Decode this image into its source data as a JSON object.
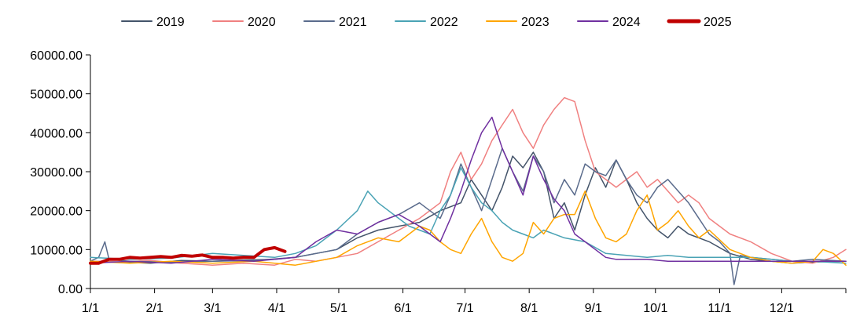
{
  "chart_data": {
    "type": "line",
    "title": "",
    "xlabel": "",
    "ylabel": "",
    "ylim": [
      0,
      60000
    ],
    "y_ticks": [
      "0.00",
      "10000.00",
      "20000.00",
      "30000.00",
      "40000.00",
      "50000.00",
      "60000.00"
    ],
    "y_tick_values": [
      0,
      10000,
      20000,
      30000,
      40000,
      50000,
      60000
    ],
    "x_ticks": [
      "1/1",
      "2/1",
      "3/1",
      "4/1",
      "5/1",
      "6/1",
      "7/1",
      "8/1",
      "9/1",
      "10/1",
      "11/1",
      "12/1"
    ],
    "x_tick_days": [
      1,
      32,
      60,
      91,
      121,
      152,
      182,
      213,
      244,
      274,
      305,
      335
    ],
    "x_range_days": [
      1,
      366
    ],
    "grid": false,
    "legend_position": "top",
    "series": [
      {
        "name": "2019",
        "color": "#44546a",
        "width": 1.5,
        "x": [
          1,
          15,
          30,
          45,
          60,
          75,
          90,
          100,
          110,
          120,
          130,
          140,
          150,
          160,
          170,
          180,
          185,
          190,
          195,
          200,
          205,
          210,
          215,
          220,
          225,
          230,
          235,
          240,
          245,
          250,
          255,
          260,
          265,
          270,
          275,
          280,
          285,
          290,
          300,
          310,
          320,
          330,
          340,
          350,
          366
        ],
        "y": [
          7000,
          6800,
          6500,
          7200,
          7000,
          7300,
          7500,
          8000,
          9000,
          10000,
          13000,
          15000,
          16000,
          17000,
          20000,
          22000,
          28000,
          24000,
          20000,
          26000,
          34000,
          31000,
          35000,
          30000,
          18000,
          22000,
          15000,
          24000,
          31000,
          26000,
          33000,
          28000,
          22000,
          18000,
          15000,
          13000,
          16000,
          14000,
          12000,
          9000,
          7500,
          7000,
          6500,
          6800,
          7000
        ]
      },
      {
        "name": "2020",
        "color": "#f08080",
        "width": 1.5,
        "x": [
          1,
          15,
          30,
          45,
          60,
          75,
          90,
          100,
          110,
          120,
          130,
          140,
          150,
          160,
          170,
          175,
          180,
          185,
          190,
          195,
          200,
          205,
          210,
          215,
          220,
          225,
          230,
          235,
          240,
          245,
          250,
          255,
          260,
          265,
          270,
          275,
          280,
          285,
          290,
          295,
          300,
          310,
          320,
          330,
          340,
          350,
          360,
          366
        ],
        "y": [
          7000,
          6800,
          7200,
          6500,
          6000,
          6500,
          6000,
          7500,
          7000,
          8000,
          9000,
          12000,
          15000,
          18000,
          22000,
          30000,
          35000,
          28000,
          32000,
          38000,
          42000,
          46000,
          40000,
          36000,
          42000,
          46000,
          49000,
          48000,
          38000,
          30000,
          28000,
          26000,
          28000,
          30000,
          26000,
          28000,
          25000,
          22000,
          24000,
          22000,
          18000,
          14000,
          12000,
          9000,
          7000,
          6500,
          8000,
          10000
        ]
      },
      {
        "name": "2021",
        "color": "#5a6b8c",
        "width": 1.5,
        "x": [
          1,
          5,
          8,
          10,
          20,
          40,
          60,
          80,
          100,
          110,
          120,
          130,
          140,
          150,
          160,
          165,
          170,
          175,
          180,
          185,
          190,
          195,
          200,
          205,
          210,
          215,
          220,
          225,
          230,
          235,
          240,
          245,
          250,
          255,
          260,
          265,
          270,
          275,
          280,
          290,
          300,
          305,
          310,
          312,
          315,
          320,
          330,
          340,
          350,
          366
        ],
        "y": [
          7000,
          8000,
          12000,
          7500,
          7000,
          6800,
          7000,
          7200,
          8000,
          9000,
          10000,
          14000,
          17000,
          19000,
          22000,
          20000,
          18000,
          24000,
          32000,
          26000,
          20000,
          28000,
          36000,
          30000,
          25000,
          34000,
          30000,
          22000,
          28000,
          24000,
          32000,
          30000,
          29000,
          33000,
          28000,
          24000,
          22000,
          26000,
          28000,
          22000,
          14000,
          12000,
          9000,
          1000,
          8500,
          8000,
          7500,
          7000,
          7500,
          7000
        ]
      },
      {
        "name": "2022",
        "color": "#4aa3b5",
        "width": 1.5,
        "x": [
          1,
          20,
          40,
          60,
          75,
          90,
          100,
          110,
          115,
          120,
          130,
          135,
          140,
          150,
          155,
          160,
          165,
          170,
          175,
          180,
          185,
          190,
          195,
          200,
          205,
          210,
          215,
          220,
          230,
          240,
          250,
          260,
          270,
          280,
          290,
          300,
          310,
          320,
          330,
          340,
          350,
          366
        ],
        "y": [
          8000,
          7500,
          7800,
          9000,
          8500,
          8000,
          9000,
          11000,
          13000,
          15000,
          20000,
          25000,
          22000,
          18000,
          16000,
          15000,
          14000,
          20000,
          24000,
          31000,
          26000,
          22000,
          20000,
          17000,
          15000,
          14000,
          13000,
          15000,
          13000,
          12000,
          9000,
          8500,
          8000,
          8500,
          8000,
          8000,
          8000,
          8000,
          7500,
          7000,
          7000,
          6500
        ]
      },
      {
        "name": "2023",
        "color": "#ffa500",
        "width": 1.5,
        "x": [
          1,
          20,
          40,
          60,
          80,
          100,
          120,
          130,
          140,
          150,
          155,
          160,
          165,
          170,
          175,
          180,
          185,
          190,
          195,
          200,
          205,
          210,
          215,
          220,
          225,
          230,
          235,
          240,
          245,
          250,
          255,
          260,
          265,
          270,
          275,
          280,
          285,
          290,
          295,
          300,
          310,
          320,
          330,
          340,
          350,
          355,
          360,
          366
        ],
        "y": [
          7000,
          6500,
          7000,
          6500,
          7000,
          6000,
          8000,
          11000,
          13000,
          12000,
          14000,
          16000,
          15000,
          12000,
          10000,
          9000,
          14000,
          18000,
          12000,
          8000,
          7000,
          9000,
          17000,
          14000,
          18000,
          19000,
          19000,
          25000,
          18000,
          13000,
          12000,
          14000,
          20000,
          24000,
          15000,
          17000,
          20000,
          16000,
          13000,
          15000,
          10000,
          8000,
          7000,
          6500,
          7000,
          10000,
          9000,
          6000
        ]
      },
      {
        "name": "2024",
        "color": "#7030a0",
        "width": 1.5,
        "x": [
          1,
          20,
          40,
          60,
          80,
          100,
          110,
          120,
          130,
          140,
          150,
          160,
          165,
          170,
          175,
          180,
          185,
          190,
          195,
          200,
          205,
          210,
          215,
          220,
          225,
          230,
          235,
          240,
          245,
          250,
          255,
          260,
          270,
          280,
          290,
          300,
          310,
          320,
          330,
          340,
          350,
          366
        ],
        "y": [
          6500,
          7000,
          6500,
          7500,
          7000,
          8000,
          12000,
          15000,
          14000,
          17000,
          19000,
          16000,
          14000,
          12000,
          18000,
          25000,
          33000,
          40000,
          44000,
          36000,
          30000,
          24000,
          34000,
          28000,
          23000,
          20000,
          14000,
          12000,
          10000,
          8000,
          7500,
          7500,
          7500,
          7000,
          7000,
          7000,
          7000,
          7000,
          7000,
          7000,
          7000,
          7000
        ]
      },
      {
        "name": "2025",
        "color": "#c00000",
        "width": 4,
        "x": [
          1,
          5,
          10,
          15,
          20,
          25,
          30,
          35,
          40,
          45,
          50,
          55,
          60,
          65,
          70,
          75,
          80,
          85,
          90,
          95
        ],
        "y": [
          6500,
          6500,
          7500,
          7500,
          8000,
          7800,
          8000,
          8200,
          8000,
          8500,
          8300,
          8600,
          8000,
          8000,
          7800,
          8000,
          8000,
          10000,
          10500,
          9500
        ]
      }
    ]
  }
}
